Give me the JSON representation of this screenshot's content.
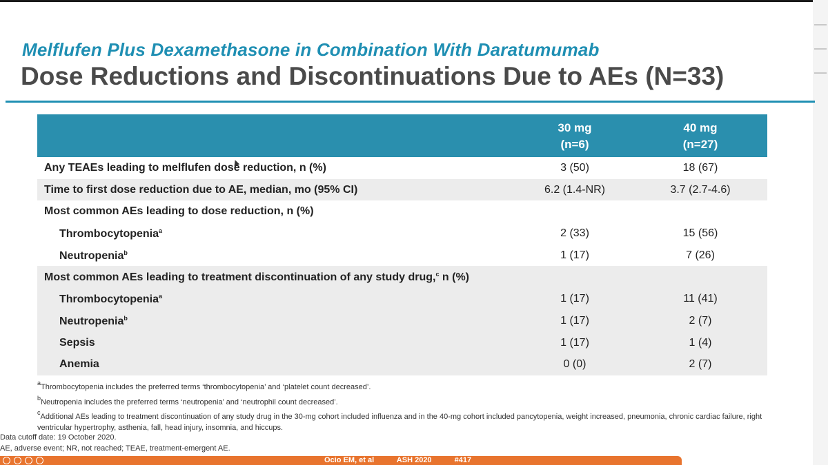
{
  "slide": {
    "subtitle": "Melflufen Plus Dexamethasone in Combination With Daratumumab",
    "title": "Dose Reductions and Discontinuations Due to AEs (N=33)"
  },
  "table": {
    "headers": [
      {
        "line1": "30 mg",
        "line2": "(n=6)"
      },
      {
        "line1": "40 mg",
        "line2": "(n=27)"
      }
    ],
    "rows": [
      {
        "label": "Any TEAEs leading to melflufen dose reduction, n (%)",
        "sup": "",
        "after": "",
        "c1": "3 (50)",
        "c2": "18 (67)"
      },
      {
        "label": "Time to first dose reduction due to AE, median, mo (95% CI)",
        "sup": "",
        "after": "",
        "c1": "6.2 (1.4-NR)",
        "c2": "3.7 (2.7-4.6)"
      },
      {
        "label": "Most common AEs leading to dose reduction, n (%)",
        "sup": "",
        "after": "",
        "c1": "",
        "c2": ""
      },
      {
        "label": "Thrombocytopenia",
        "sup": "a",
        "after": "",
        "c1": "2 (33)",
        "c2": "15 (56)"
      },
      {
        "label": "Neutropenia",
        "sup": "b",
        "after": "",
        "c1": "1 (17)",
        "c2": "7 (26)"
      },
      {
        "label": "Most common AEs leading to treatment discontinuation of any study drug,",
        "sup": "c",
        "after": " n (%)",
        "c1": "",
        "c2": ""
      },
      {
        "label": "Thrombocytopenia",
        "sup": "a",
        "after": "",
        "c1": "1 (17)",
        "c2": "11 (41)"
      },
      {
        "label": "Neutropenia",
        "sup": "b",
        "after": "",
        "c1": "1 (17)",
        "c2": "2 (7)"
      },
      {
        "label": "Sepsis",
        "sup": "",
        "after": "",
        "c1": "1 (17)",
        "c2": "1 (4)"
      },
      {
        "label": "Anemia",
        "sup": "",
        "after": "",
        "c1": "0 (0)",
        "c2": "2 (7)"
      }
    ]
  },
  "footnotes": [
    {
      "sup": "a",
      "text": "Thrombocytopenia includes the preferred terms ‘thrombocytopenia’ and ‘platelet count decreased’."
    },
    {
      "sup": "b",
      "text": "Neutropenia includes the preferred terms ‘neutropenia’ and ‘neutrophil count decreased’."
    },
    {
      "sup": "c",
      "text": "Additional AEs leading to treatment discontinuation of any study drug in the 30-mg cohort included influenza and in the 40-mg cohort included pancytopenia, weight increased, pneumonia, chronic cardiac failure, right ventricular hypertrophy, asthenia, fall, head injury, insomnia, and hiccups."
    }
  ],
  "meta": {
    "cutoff": "Data cutoff date: 19 October 2020.",
    "abbreviations": "AE, adverse event; NR, not reached; TEAE, treatment-emergent AE."
  },
  "citation": {
    "author": "Ocio EM, et al",
    "meeting": "ASH 2020",
    "poster": "#417"
  },
  "colors": {
    "accent": "#1f8fb3",
    "header_bg": "#2a8fae",
    "footer_bar": "#e8742e"
  }
}
